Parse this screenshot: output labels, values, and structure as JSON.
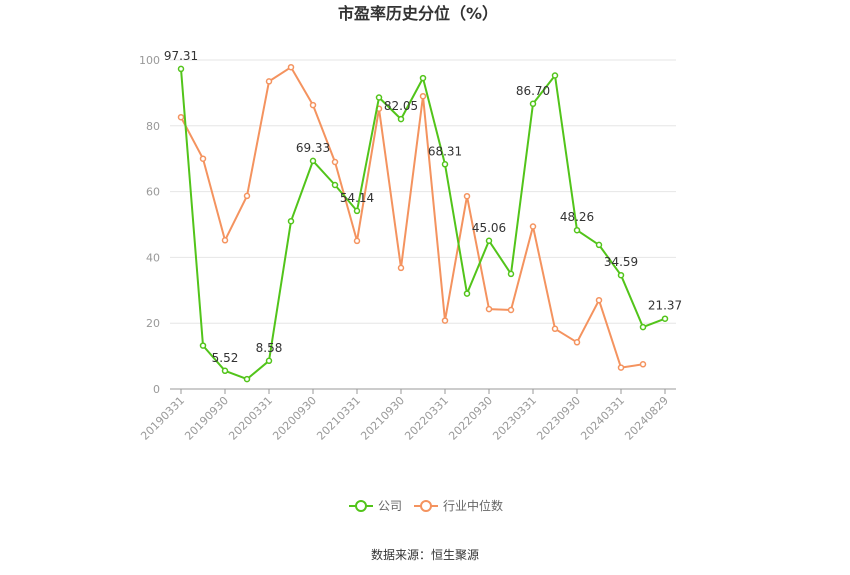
{
  "chart_data": {
    "type": "line",
    "title": "市盈率历史分位（%）",
    "categories": [
      "20190331",
      "20190630",
      "20190930",
      "20191231",
      "20200331",
      "20200630",
      "20200930",
      "20201231",
      "20210331",
      "20210630",
      "20210930",
      "20211231",
      "20220331",
      "20220630",
      "20220930",
      "20221231",
      "20230331",
      "20230630",
      "20230930",
      "20231231",
      "20240331",
      "20240630",
      "20240829"
    ],
    "xtick_labels": [
      "20190331",
      "20190930",
      "20200331",
      "20200930",
      "20210331",
      "20210930",
      "20220331",
      "20220930",
      "20230331",
      "20230930",
      "20240331",
      "20240829"
    ],
    "ylim": [
      0,
      100
    ],
    "yticks": [
      0,
      20,
      40,
      60,
      80,
      100
    ],
    "grid": true,
    "legend": "bottom-center",
    "series": [
      {
        "name": "公司",
        "color": "#52c41a",
        "values": [
          97.31,
          13.2,
          5.52,
          3.0,
          8.58,
          51.0,
          69.33,
          62.0,
          54.14,
          88.6,
          82.05,
          94.5,
          68.31,
          29.0,
          45.06,
          35.0,
          86.7,
          95.3,
          48.26,
          43.8,
          34.59,
          18.8,
          21.37
        ],
        "labels": [
          "97.31",
          "",
          "5.52",
          "",
          "8.58",
          "",
          "69.33",
          "",
          "54.14",
          "",
          "82.05",
          "",
          "68.31",
          "",
          "45.06",
          "",
          "86.70",
          "",
          "48.26",
          "",
          "34.59",
          "",
          "21.37"
        ]
      },
      {
        "name": "行业中位数",
        "color": "#f4935f",
        "values": [
          82.6,
          70.0,
          45.2,
          58.7,
          93.5,
          97.8,
          86.3,
          69.0,
          45.0,
          85.2,
          36.8,
          89.0,
          20.8,
          58.6,
          24.3,
          24.0,
          49.4,
          18.3,
          14.2,
          27.0,
          6.5,
          7.5,
          null
        ]
      }
    ]
  },
  "source": "数据来源：恒生聚源"
}
